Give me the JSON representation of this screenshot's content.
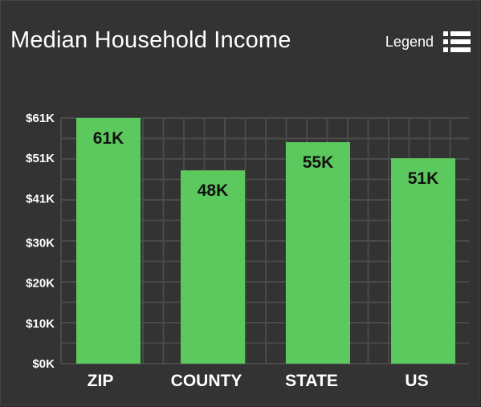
{
  "header": {
    "title": "Median Household Income",
    "legend_label": "Legend",
    "legend_icon": "list-icon"
  },
  "colors": {
    "background": "#333333",
    "bar": "#5cc95e",
    "grid": "#4a4a4a",
    "text": "#ffffff",
    "data_label": "#111111"
  },
  "chart_data": {
    "type": "bar",
    "title": "Median Household Income",
    "xlabel": "",
    "ylabel": "",
    "categories": [
      "ZIP",
      "COUNTY",
      "STATE",
      "US"
    ],
    "values": [
      61,
      48,
      55,
      51
    ],
    "value_labels": [
      "61K",
      "48K",
      "55K",
      "51K"
    ],
    "value_unit": "K USD",
    "ylim": [
      0,
      61
    ],
    "y_ticks": [
      0,
      10,
      20,
      30,
      41,
      51,
      61
    ],
    "y_tick_labels": [
      "$0K",
      "$10K",
      "$20K",
      "$30K",
      "$41K",
      "$51K",
      "$61K"
    ],
    "grid": true,
    "legend": "collapsed"
  }
}
